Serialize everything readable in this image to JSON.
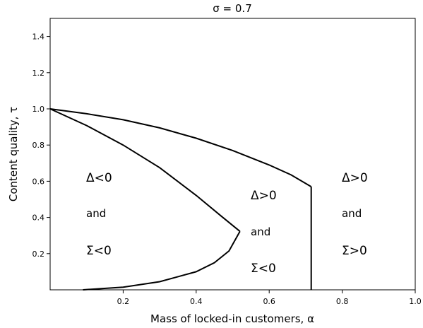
{
  "chart_data": {
    "type": "line",
    "title": "σ = 0.7",
    "xlabel": "Mass of locked-in customers, α",
    "ylabel": "Content quality, τ",
    "xlim": [
      0.0,
      1.0
    ],
    "ylim": [
      0.0,
      1.5
    ],
    "x_ticks": [
      0.2,
      0.4,
      0.6,
      0.8,
      1.0
    ],
    "x_tick_labels": [
      "0.2",
      "0.4",
      "0.6",
      "0.8",
      "1.0"
    ],
    "y_ticks": [
      0.2,
      0.4,
      0.6,
      0.8,
      1.0,
      1.2,
      1.4
    ],
    "y_tick_labels": [
      "0.2",
      "0.4",
      "0.6",
      "0.8",
      "1.0",
      "1.2",
      "1.4"
    ],
    "grid": false,
    "series": [
      {
        "values_xy": [
          [
            0.0,
            1.0
          ],
          [
            0.1,
            0.973
          ],
          [
            0.2,
            0.94
          ],
          [
            0.3,
            0.895
          ],
          [
            0.4,
            0.838
          ],
          [
            0.5,
            0.77
          ],
          [
            0.6,
            0.69
          ],
          [
            0.66,
            0.635
          ],
          [
            0.715,
            0.57
          ]
        ]
      },
      {
        "values_xy": [
          [
            0.715,
            0.57
          ],
          [
            0.715,
            0.0
          ]
        ]
      },
      {
        "values_xy": [
          [
            0.0,
            1.0
          ],
          [
            0.1,
            0.908
          ],
          [
            0.2,
            0.8
          ],
          [
            0.3,
            0.675
          ],
          [
            0.4,
            0.522
          ],
          [
            0.47,
            0.405
          ],
          [
            0.52,
            0.323
          ]
        ]
      },
      {
        "values_xy": [
          [
            0.09,
            0.0
          ],
          [
            0.2,
            0.015
          ],
          [
            0.3,
            0.045
          ],
          [
            0.4,
            0.1
          ],
          [
            0.45,
            0.15
          ],
          [
            0.49,
            0.215
          ],
          [
            0.52,
            0.323
          ]
        ]
      }
    ],
    "annotations": [
      {
        "id": "left",
        "lines": [
          "Δ<0",
          "and",
          "Σ<0"
        ]
      },
      {
        "id": "middle",
        "lines": [
          "Δ>0",
          "and",
          "Σ<0"
        ]
      },
      {
        "id": "right",
        "lines": [
          "Δ>0",
          "and",
          "Σ>0"
        ]
      }
    ]
  }
}
